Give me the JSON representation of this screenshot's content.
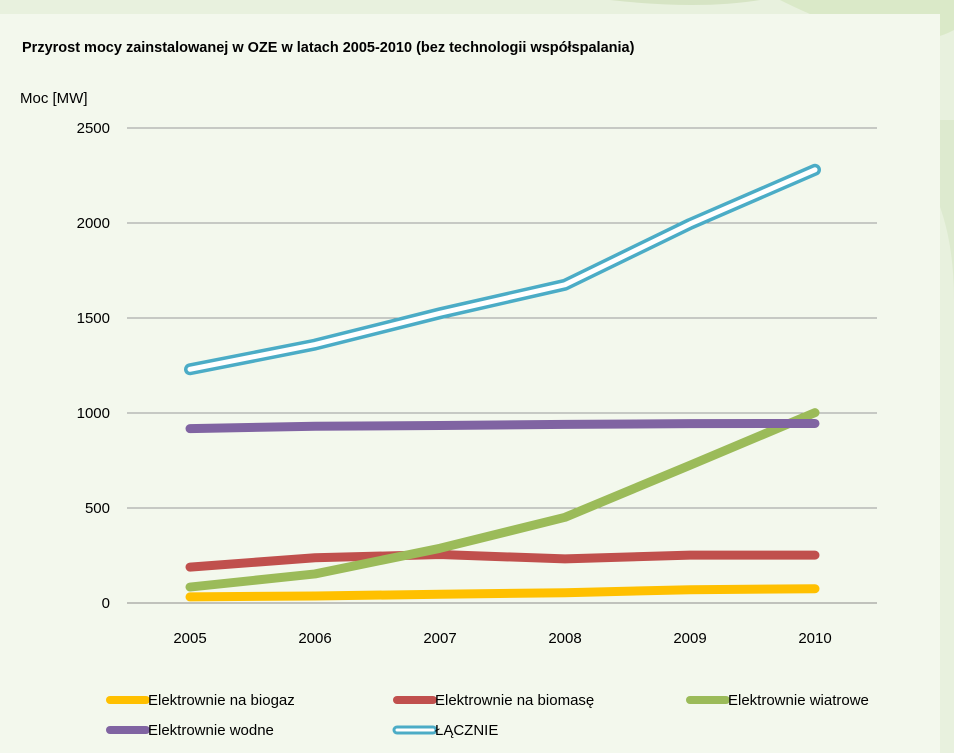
{
  "chart_data": {
    "type": "line",
    "title": "Przyrost mocy zainstalowanej w OZE w latach 2005-2010 (bez technologii współspalania)",
    "ylabel": "Moc  [MW]",
    "xlabel": "",
    "x": [
      "2005",
      "2006",
      "2007",
      "2008",
      "2009",
      "2010"
    ],
    "ylim": [
      0,
      2500
    ],
    "yticks": [
      0,
      500,
      1000,
      1500,
      2000,
      2500
    ],
    "grid": "horizontal",
    "legend_position": "bottom",
    "series": [
      {
        "name": "Elektrownie na biogaz",
        "color": "#ffc000",
        "style": "solid",
        "values": [
          32,
          37,
          46,
          54,
          70,
          75
        ]
      },
      {
        "name": "Elektrownie na biomasę",
        "color": "#c0504d",
        "style": "solid",
        "values": [
          189,
          238,
          255,
          232,
          252,
          252
        ]
      },
      {
        "name": "Elektrownie wiatrowe",
        "color": "#9bbb59",
        "style": "solid",
        "values": [
          84,
          153,
          288,
          451,
          725,
          1002
        ]
      },
      {
        "name": "Elektrownie wodne",
        "color": "#8064a2",
        "style": "solid",
        "values": [
          918,
          930,
          934,
          940,
          944,
          945
        ]
      },
      {
        "name": "ŁĄCZNIE",
        "color": "#4bacc6",
        "style": "hollow",
        "values": [
          1230,
          1360,
          1525,
          1675,
          1995,
          2280
        ]
      }
    ]
  }
}
